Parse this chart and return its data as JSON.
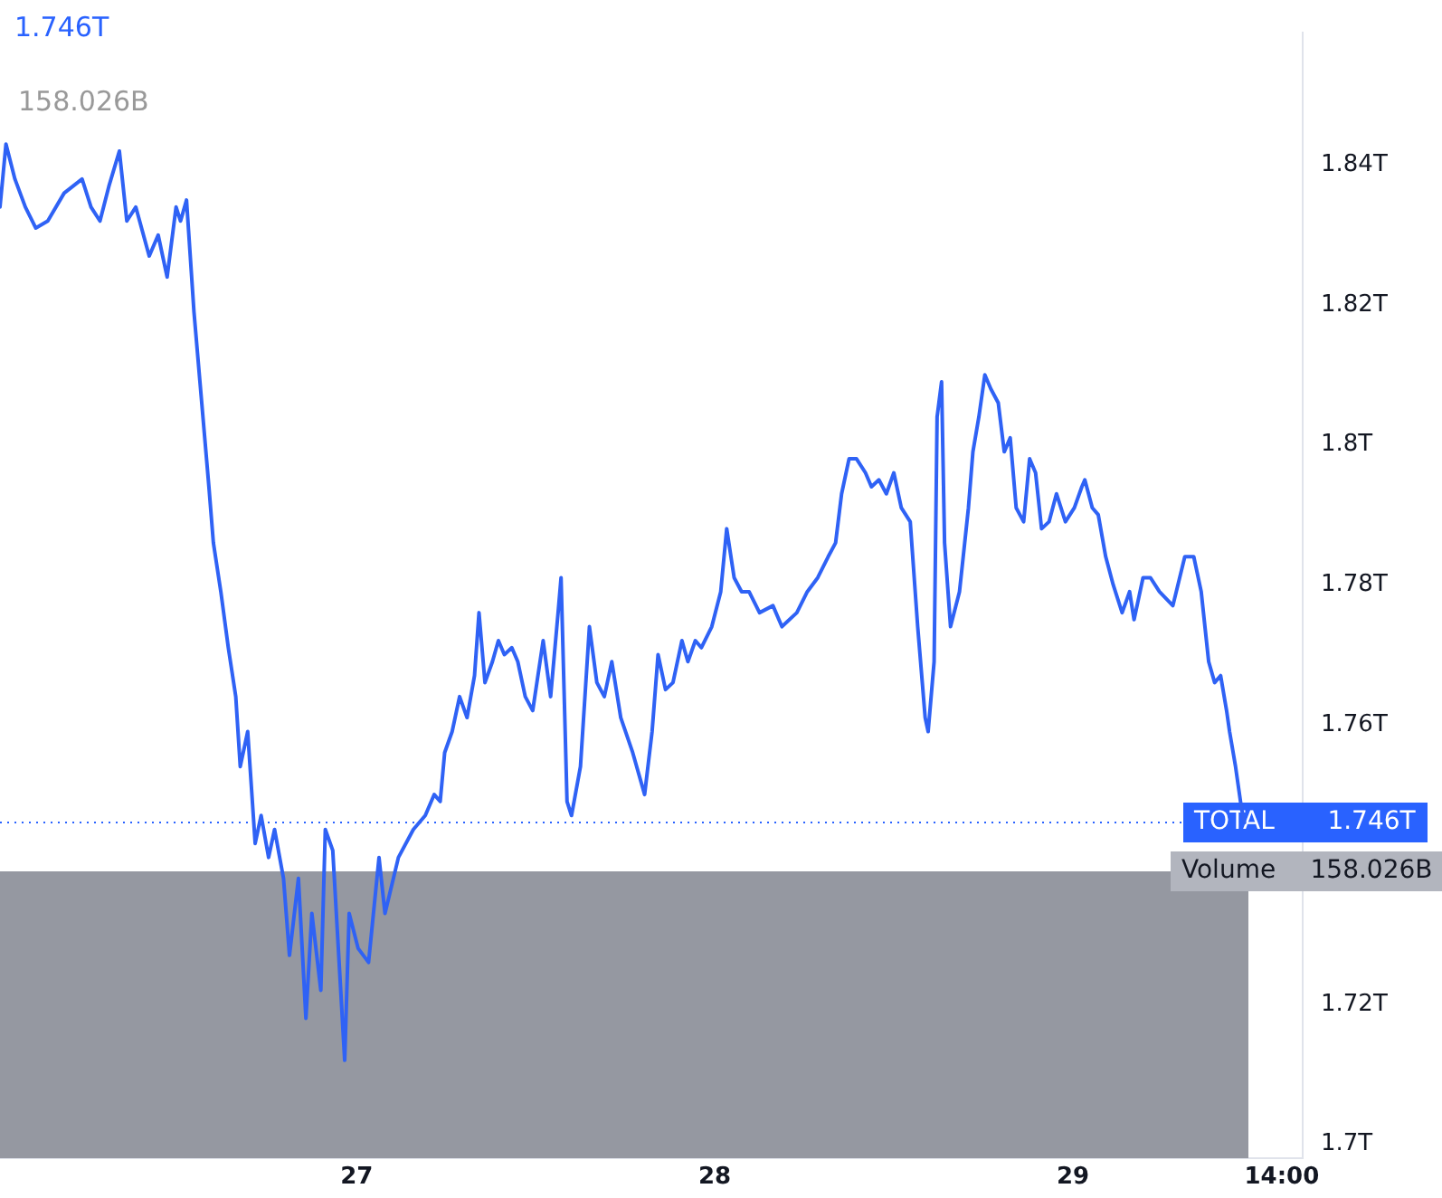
{
  "chart_data": {
    "type": "line",
    "title": "1.746T",
    "subtitle": "158.026B",
    "x": [
      "--01-26T00:06",
      "--01-26T00:30",
      "--01-26T01:06",
      "--01-26T01:48",
      "--01-26T02:30",
      "--01-26T03:18",
      "--01-26T04:24",
      "--01-26T05:00",
      "--01-26T05:36",
      "--01-26T06:12",
      "--01-26T06:48",
      "--01-26T07:24",
      "--01-26T08:06",
      "--01-26T08:36",
      "--01-26T09:12",
      "--01-26T10:06",
      "--01-26T10:42",
      "--01-26T11:18",
      "--01-26T11:54",
      "--01-26T12:12",
      "--01-26T12:36",
      "--01-26T13:06",
      "--01-26T13:30",
      "--01-26T14:06",
      "--01-26T14:24",
      "--01-26T14:54",
      "--01-26T15:24",
      "--01-26T15:54",
      "--01-26T16:12",
      "--01-26T16:42",
      "--01-26T17:12",
      "--01-26T17:36",
      "--01-26T18:06",
      "--01-26T18:30",
      "--01-26T19:06",
      "--01-26T19:30",
      "--01-26T20:06",
      "--01-26T20:36",
      "--01-26T21:00",
      "--01-26T21:36",
      "--01-26T21:54",
      "--01-26T22:24",
      "--01-26T23:12",
      "--01-26T23:30",
      "--01-27T00:06",
      "--01-27T00:48",
      "--01-27T01:30",
      "--01-27T01:54",
      "--01-27T02:48",
      "--01-27T03:48",
      "--01-27T04:36",
      "--01-27T05:12",
      "--01-27T05:36",
      "--01-27T05:54",
      "--01-27T06:24",
      "--01-27T06:54",
      "--01-27T07:24",
      "--01-27T07:54",
      "--01-27T08:12",
      "--01-27T08:36",
      "--01-27T09:06",
      "--01-27T09:30",
      "--01-27T09:54",
      "--01-27T10:24",
      "--01-27T10:48",
      "--01-27T11:18",
      "--01-27T11:48",
      "--01-27T12:30",
      "--01-27T13:00",
      "--01-27T13:30",
      "--01-27T13:42",
      "--01-27T14:06",
      "--01-27T14:24",
      "--01-27T15:00",
      "--01-27T15:36",
      "--01-27T16:06",
      "--01-27T16:36",
      "--01-27T17:06",
      "--01-27T17:42",
      "--01-27T18:30",
      "--01-27T19:18",
      "--01-27T19:48",
      "--01-27T20:12",
      "--01-27T20:42",
      "--01-27T21:12",
      "--01-27T21:48",
      "--01-27T22:12",
      "--01-27T22:42",
      "--01-27T23:06",
      "--01-27T23:48",
      "--01-28T00:24",
      "--01-28T00:48",
      "--01-28T01:18",
      "--01-28T01:48",
      "--01-28T02:18",
      "--01-28T03:00",
      "--01-28T03:54",
      "--01-28T04:30",
      "--01-28T05:30",
      "--01-28T06:12",
      "--01-28T06:54",
      "--01-28T07:36",
      "--01-28T08:06",
      "--01-28T08:30",
      "--01-28T09:00",
      "--01-28T09:30",
      "--01-28T10:06",
      "--01-28T10:30",
      "--01-28T11:00",
      "--01-28T11:30",
      "--01-28T12:00",
      "--01-28T12:30",
      "--01-28T13:06",
      "--01-28T13:36",
      "--01-28T14:06",
      "--01-28T14:18",
      "--01-28T14:42",
      "--01-28T14:54",
      "--01-28T15:12",
      "--01-28T15:24",
      "--01-28T15:48",
      "--01-28T16:24",
      "--01-28T17:00",
      "--01-28T17:18",
      "--01-28T17:42",
      "--01-28T18:06",
      "--01-28T18:30",
      "--01-28T19:00",
      "--01-28T19:24",
      "--01-28T19:48",
      "--01-28T20:12",
      "--01-28T20:42",
      "--01-28T21:06",
      "--01-28T21:30",
      "--01-28T21:54",
      "--01-28T22:24",
      "--01-28T22:54",
      "--01-28T23:30",
      "--01-29T00:06",
      "--01-29T00:36",
      "--01-29T00:48",
      "--01-29T01:18",
      "--01-29T01:42",
      "--01-29T02:12",
      "--01-29T02:42",
      "--01-29T03:18",
      "--01-29T03:48",
      "--01-29T04:06",
      "--01-29T04:42",
      "--01-29T05:12",
      "--01-29T05:48",
      "--01-29T06:42",
      "--01-29T07:30",
      "--01-29T08:06",
      "--01-29T08:36",
      "--01-29T09:06",
      "--01-29T09:30",
      "--01-29T09:54",
      "--01-29T10:18",
      "--01-29T10:30",
      "--01-29T10:54",
      "--01-29T11:18",
      "--01-29T11:30"
    ],
    "series": [
      {
        "color": "#2f62f5",
        "values": [
          1.834,
          1.843,
          1.838,
          1.834,
          1.831,
          1.832,
          1.836,
          1.837,
          1.838,
          1.834,
          1.832,
          1.837,
          1.842,
          1.832,
          1.834,
          1.827,
          1.83,
          1.824,
          1.834,
          1.832,
          1.835,
          1.819,
          1.809,
          1.794,
          1.786,
          1.779,
          1.771,
          1.764,
          1.754,
          1.759,
          1.743,
          1.747,
          1.741,
          1.745,
          1.738,
          1.727,
          1.738,
          1.718,
          1.733,
          1.722,
          1.745,
          1.742,
          1.712,
          1.733,
          1.728,
          1.726,
          1.741,
          1.733,
          1.741,
          1.745,
          1.747,
          1.75,
          1.749,
          1.756,
          1.759,
          1.764,
          1.761,
          1.767,
          1.776,
          1.766,
          1.769,
          1.772,
          1.77,
          1.771,
          1.769,
          1.764,
          1.762,
          1.772,
          1.764,
          1.776,
          1.781,
          1.749,
          1.747,
          1.754,
          1.774,
          1.766,
          1.764,
          1.769,
          1.761,
          1.756,
          1.75,
          1.759,
          1.77,
          1.765,
          1.766,
          1.772,
          1.769,
          1.772,
          1.771,
          1.774,
          1.779,
          1.788,
          1.781,
          1.779,
          1.779,
          1.776,
          1.777,
          1.774,
          1.776,
          1.779,
          1.781,
          1.784,
          1.786,
          1.793,
          1.798,
          1.798,
          1.796,
          1.794,
          1.795,
          1.793,
          1.796,
          1.791,
          1.789,
          1.774,
          1.761,
          1.759,
          1.769,
          1.804,
          1.809,
          1.786,
          1.774,
          1.779,
          1.791,
          1.799,
          1.804,
          1.81,
          1.808,
          1.806,
          1.799,
          1.801,
          1.791,
          1.789,
          1.798,
          1.796,
          1.788,
          1.789,
          1.793,
          1.789,
          1.791,
          1.794,
          1.795,
          1.791,
          1.79,
          1.784,
          1.78,
          1.776,
          1.779,
          1.775,
          1.781,
          1.781,
          1.779,
          1.777,
          1.784,
          1.784,
          1.779,
          1.769,
          1.766,
          1.767,
          1.762,
          1.759,
          1.754,
          1.748,
          1.746
        ]
      }
    ],
    "xlim": [
      "--01-26T00:06",
      "--01-29T15:24"
    ],
    "xticks": [
      {
        "value": "--01-27",
        "label": "27"
      },
      {
        "value": "--01-28",
        "label": "28"
      },
      {
        "value": "--01-29",
        "label": "29"
      },
      {
        "value": "--01-29T14:00",
        "label": "14:00"
      }
    ],
    "ylim": [
      1.698,
      1.859
    ],
    "yticks": [
      {
        "value": 1.7,
        "label": "1.7T"
      },
      {
        "value": 1.72,
        "label": "1.72T"
      },
      {
        "value": 1.76,
        "label": "1.76T"
      },
      {
        "value": 1.78,
        "label": "1.78T"
      },
      {
        "value": 1.8,
        "label": "1.8T"
      },
      {
        "value": 1.82,
        "label": "1.82T"
      },
      {
        "value": 1.84,
        "label": "1.84T"
      }
    ],
    "ref_lines": [
      {
        "axis": "y",
        "value": 1.746,
        "label": "TOTAL",
        "color": "#2962ff",
        "line_style": "dotted"
      }
    ],
    "bands": [
      {
        "axis": "y",
        "from": 1.698,
        "to": 1.739,
        "label": "Volume",
        "color": "#9598a1"
      }
    ],
    "annotations": [
      "1.746T",
      "158.026B"
    ],
    "grid": false,
    "legend": false,
    "marker": "none",
    "line_style": "solid"
  }
}
